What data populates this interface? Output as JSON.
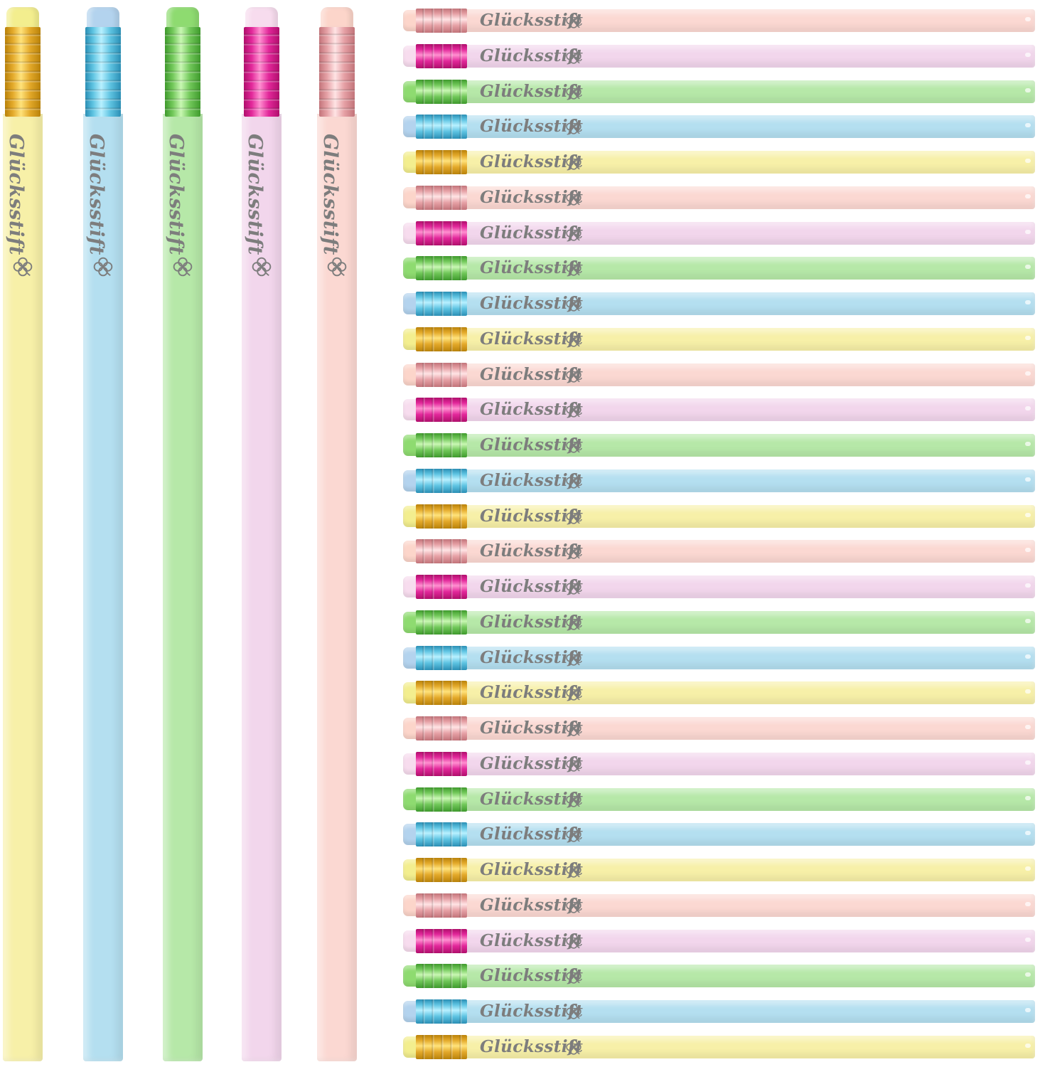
{
  "brand_text": "Glücksstift",
  "palette": {
    "yellow": {
      "body": "#f7f0a8",
      "eraser": "#f3ee8e",
      "ferrule_dark": "#b9820a",
      "ferrule_light": "#ffe27a",
      "ferrule_mid": "#e3a92a"
    },
    "blue": {
      "body": "#b4dff0",
      "eraser": "#b3d3ee",
      "ferrule_dark": "#2b8fb5",
      "ferrule_light": "#b7f0ff",
      "ferrule_mid": "#5fc4e2"
    },
    "green": {
      "body": "#b6e8a8",
      "eraser": "#8edb70",
      "ferrule_dark": "#3f9a2d",
      "ferrule_light": "#c8f7b2",
      "ferrule_mid": "#72c85a"
    },
    "lilac": {
      "body": "#f2d6ec",
      "eraser": "#f7dcee",
      "ferrule_dark": "#b00f6c",
      "ferrule_light": "#ff8fd0",
      "ferrule_mid": "#e2279a"
    },
    "peach": {
      "body": "#fbd8d2",
      "eraser": "#fcd5ca",
      "ferrule_dark": "#c2747a",
      "ferrule_light": "#ffe3e4",
      "ferrule_mid": "#e6a1a6"
    }
  },
  "vertical_pencils": [
    {
      "color": "yellow"
    },
    {
      "color": "blue"
    },
    {
      "color": "green"
    },
    {
      "color": "lilac"
    },
    {
      "color": "peach"
    }
  ],
  "horizontal_pencils": [
    {
      "color": "peach"
    },
    {
      "color": "lilac"
    },
    {
      "color": "green"
    },
    {
      "color": "blue"
    },
    {
      "color": "yellow"
    },
    {
      "color": "peach"
    },
    {
      "color": "lilac"
    },
    {
      "color": "green"
    },
    {
      "color": "blue"
    },
    {
      "color": "yellow"
    },
    {
      "color": "peach"
    },
    {
      "color": "lilac"
    },
    {
      "color": "green"
    },
    {
      "color": "blue"
    },
    {
      "color": "yellow"
    },
    {
      "color": "peach"
    },
    {
      "color": "lilac"
    },
    {
      "color": "green"
    },
    {
      "color": "blue"
    },
    {
      "color": "yellow"
    },
    {
      "color": "peach"
    },
    {
      "color": "lilac"
    },
    {
      "color": "green"
    },
    {
      "color": "blue"
    },
    {
      "color": "yellow"
    },
    {
      "color": "peach"
    },
    {
      "color": "lilac"
    },
    {
      "color": "green"
    },
    {
      "color": "blue"
    },
    {
      "color": "yellow"
    }
  ]
}
